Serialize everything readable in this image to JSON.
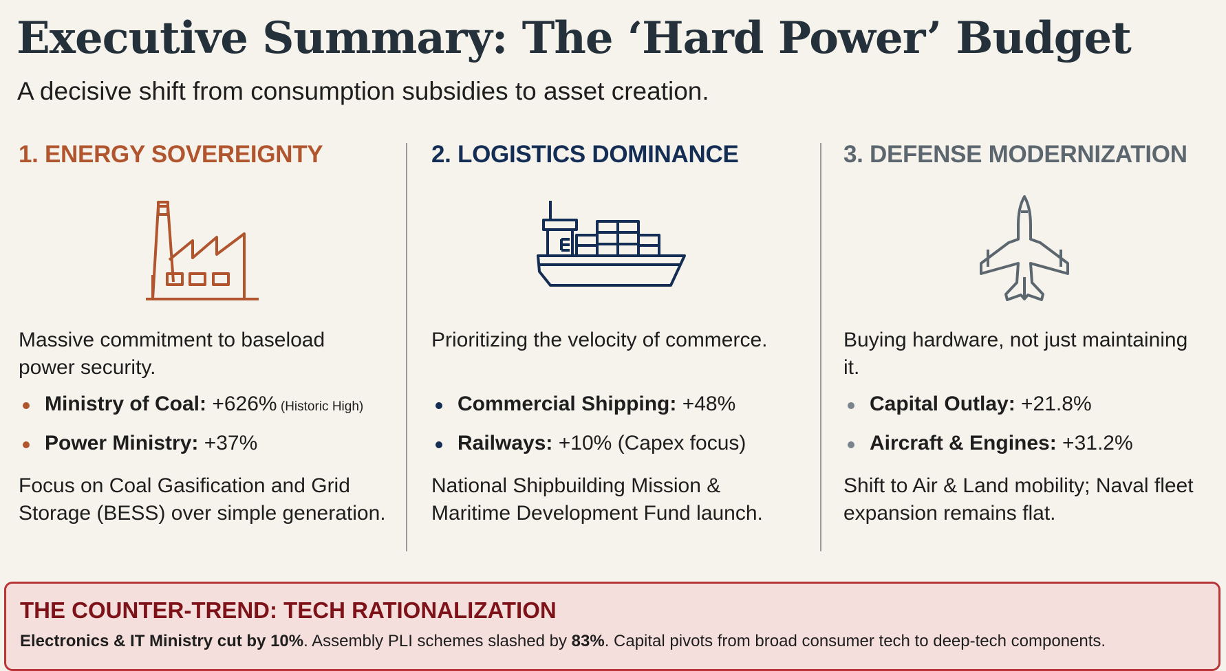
{
  "header": {
    "title": "Executive Summary: The ‘Hard Power’ Budget",
    "subtitle": "A decisive shift from consumption subsidies to asset creation."
  },
  "columns": [
    {
      "heading": "1. ENERGY SOVEREIGNTY",
      "color": "#b0552d",
      "icon": "factory-icon",
      "lead": "Massive commitment to baseload power security.",
      "bullets": [
        {
          "label": "Ministry of Coal:",
          "value": " +626%",
          "note": " (Historic High)"
        },
        {
          "label": "Power Ministry:",
          "value": " +37%",
          "note": ""
        }
      ],
      "footer": "Focus on Coal Gasification and Grid Storage (BESS) over simple generation."
    },
    {
      "heading": "2. LOGISTICS DOMINANCE",
      "color": "#142d55",
      "icon": "cargo-ship-icon",
      "lead": "Prioritizing the velocity of commerce.",
      "bullets": [
        {
          "label": "Commercial Shipping:",
          "value": " +48%",
          "note": ""
        },
        {
          "label": "Railways:",
          "value": " +10% (Capex focus)",
          "note": ""
        }
      ],
      "footer": "National Shipbuilding Mission & Maritime Development Fund launch."
    },
    {
      "heading": "3. DEFENSE MODERNIZATION",
      "color": "#5c666e",
      "icon": "fighter-jet-icon",
      "lead": "Buying hardware, not just maintaining it.",
      "bullets": [
        {
          "label": "Capital Outlay:",
          "value": " +21.8%",
          "note": ""
        },
        {
          "label": "Aircraft & Engines:",
          "value": " +31.2%",
          "note": ""
        }
      ],
      "footer": "Shift to Air & Land mobility; Naval fleet expansion remains flat."
    }
  ],
  "counter_trend": {
    "heading": "THE COUNTER-TREND: TECH RATIONALIZATION",
    "part1_bold": "Electronics & IT Ministry cut by 10%",
    "part2": ". Assembly PLI schemes slashed by ",
    "part3_bold": "83%",
    "part4": ". Capital pivots from broad consumer tech to deep-tech components.",
    "accent": "#b8353a"
  }
}
